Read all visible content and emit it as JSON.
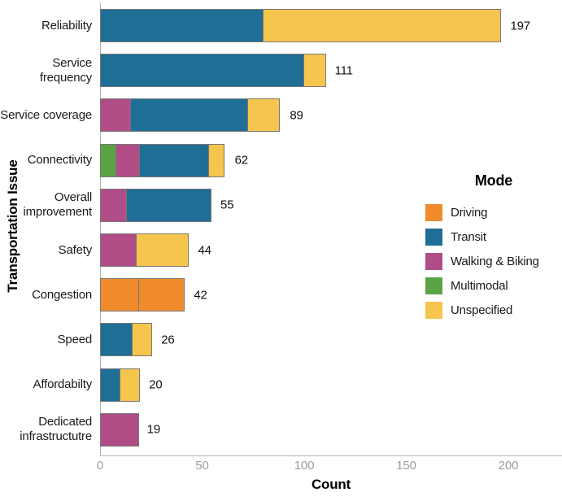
{
  "chart_data": {
    "type": "bar",
    "orientation": "horizontal",
    "stacked": true,
    "title": "",
    "xlabel": "Count",
    "ylabel": "Transportation Issue",
    "xlim": [
      0,
      200
    ],
    "x_ticks": [
      0,
      50,
      100,
      150,
      200
    ],
    "grid": false,
    "legend": {
      "title": "Mode",
      "position": "right",
      "labels": [
        "Driving",
        "Transit",
        "Walking & Biking",
        "Multimodal",
        "Unspecified"
      ]
    },
    "mode_colors": {
      "Driving": "#F08B2D",
      "Transit": "#1F6E96",
      "Walking & Biking": "#B04D86",
      "Multimodal": "#5AA446",
      "Unspecified": "#F5C54E"
    },
    "categories": [
      "Reliability",
      "Service frequency",
      "Service coverage",
      "Connectivity",
      "Overall improvement",
      "Safety",
      "Congestion",
      "Speed",
      "Affordabilty",
      "Dedicated infrastructutre"
    ],
    "totals": [
      197,
      111,
      89,
      62,
      55,
      44,
      42,
      26,
      20,
      19
    ],
    "bars": [
      {
        "category": "Reliability",
        "total": 197,
        "segments": [
          {
            "mode": "Transit",
            "value": 80
          },
          {
            "mode": "Unspecified",
            "value": 117
          }
        ]
      },
      {
        "category": "Service frequency",
        "total": 111,
        "segments": [
          {
            "mode": "Transit",
            "value": 100
          },
          {
            "mode": "Unspecified",
            "value": 11
          }
        ]
      },
      {
        "category": "Service coverage",
        "total": 89,
        "segments": [
          {
            "mode": "Walking & Biking",
            "value": 15
          },
          {
            "mode": "Transit",
            "value": 58
          },
          {
            "mode": "Unspecified",
            "value": 16
          }
        ]
      },
      {
        "category": "Connectivity",
        "total": 62,
        "segments": [
          {
            "mode": "Multimodal",
            "value": 8
          },
          {
            "mode": "Walking & Biking",
            "value": 12
          },
          {
            "mode": "Transit",
            "value": 34
          },
          {
            "mode": "Unspecified",
            "value": 8
          }
        ]
      },
      {
        "category": "Overall improvement",
        "total": 55,
        "segments": [
          {
            "mode": "Walking & Biking",
            "value": 13
          },
          {
            "mode": "Transit",
            "value": 42
          }
        ]
      },
      {
        "category": "Safety",
        "total": 44,
        "segments": [
          {
            "mode": "Walking & Biking",
            "value": 18
          },
          {
            "mode": "Unspecified",
            "value": 26
          }
        ]
      },
      {
        "category": "Congestion",
        "total": 42,
        "segments": [
          {
            "mode": "Driving",
            "value": 19
          },
          {
            "mode": "Driving",
            "value": 23
          }
        ]
      },
      {
        "category": "Speed",
        "total": 26,
        "segments": [
          {
            "mode": "Transit",
            "value": 16
          },
          {
            "mode": "Unspecified",
            "value": 10
          }
        ]
      },
      {
        "category": "Affordabilty",
        "total": 20,
        "segments": [
          {
            "mode": "Transit",
            "value": 10
          },
          {
            "mode": "Unspecified",
            "value": 10
          }
        ]
      },
      {
        "category": "Dedicated infrastructutre",
        "total": 19,
        "segments": [
          {
            "mode": "Walking & Biking",
            "value": 19
          }
        ]
      }
    ]
  },
  "colors": {
    "background": "#ffffff",
    "axis_line": "#b3b3b3",
    "tick_label": "#9b9b9b",
    "segment_border": "#787878",
    "text": "#1a1a1a"
  }
}
